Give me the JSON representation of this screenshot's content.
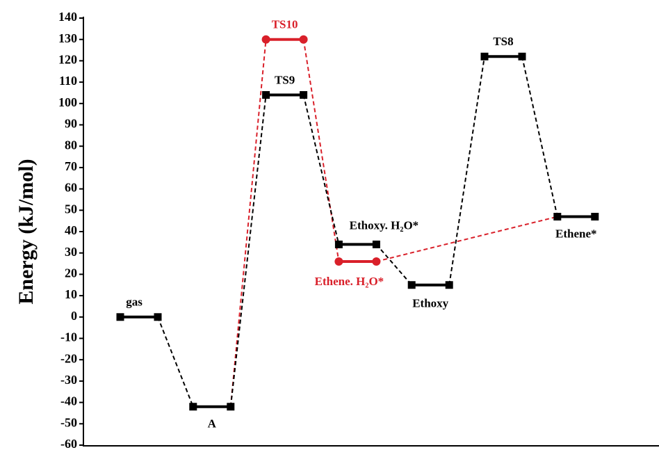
{
  "chart_data": {
    "type": "energy",
    "ylabel": "Energy (kJ/mol)",
    "ylim": [
      -60,
      140
    ],
    "yticks": [
      -60,
      -50,
      -40,
      -30,
      -20,
      -10,
      0,
      10,
      20,
      30,
      40,
      50,
      60,
      70,
      80,
      90,
      100,
      110,
      120,
      130,
      140
    ],
    "series": [
      {
        "color": "#000000",
        "marker": "square",
        "values": [
          0,
          -42,
          104,
          34,
          15,
          122,
          47
        ],
        "labels": [
          "gas",
          "A",
          "TS9",
          "Ethoxy. H₂O*",
          "Ethoxy",
          "TS8",
          "Ethene*"
        ]
      },
      {
        "color": "#d9202a",
        "marker": "circle",
        "values": [
          null,
          -42,
          130,
          26,
          null,
          null,
          47
        ],
        "labels": [
          null,
          null,
          "TS10",
          "Ethene. H₂O*",
          null,
          null,
          null
        ]
      }
    ]
  }
}
